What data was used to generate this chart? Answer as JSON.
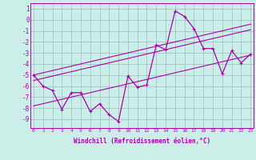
{
  "xlabel": "Windchill (Refroidissement éolien,°C)",
  "background_color": "#cceee8",
  "line_color": "#aa00aa",
  "grid_color": "#99bbbb",
  "hours": [
    0,
    1,
    2,
    3,
    4,
    5,
    6,
    7,
    8,
    9,
    10,
    11,
    12,
    13,
    14,
    15,
    16,
    17,
    18,
    19,
    20,
    21,
    22,
    23
  ],
  "windchill": [
    -5.0,
    -6.0,
    -6.4,
    -8.1,
    -6.6,
    -6.6,
    -8.3,
    -7.6,
    -8.6,
    -9.2,
    -5.1,
    -6.1,
    -5.9,
    -2.3,
    -2.7,
    0.8,
    0.3,
    -0.8,
    -2.6,
    -2.6,
    -4.9,
    -2.8,
    -3.9,
    -3.1
  ],
  "reg_upper": [
    -5.0,
    -4.8,
    -4.6,
    -4.4,
    -4.2,
    -4.0,
    -3.8,
    -3.6,
    -3.4,
    -3.2,
    -3.0,
    -2.8,
    -2.6,
    -2.4,
    -2.2,
    -2.0,
    -1.8,
    -1.6,
    -1.4,
    -1.2,
    -1.0,
    -0.8,
    -0.6,
    -0.4
  ],
  "reg_mid": [
    -5.5,
    -5.3,
    -5.1,
    -4.9,
    -4.7,
    -4.5,
    -4.3,
    -4.1,
    -3.9,
    -3.7,
    -3.5,
    -3.3,
    -3.1,
    -2.9,
    -2.7,
    -2.5,
    -2.3,
    -2.1,
    -1.9,
    -1.7,
    -1.5,
    -1.3,
    -1.1,
    -0.9
  ],
  "reg_lower": [
    -7.8,
    -7.6,
    -7.4,
    -7.2,
    -7.0,
    -6.8,
    -6.6,
    -6.4,
    -6.2,
    -6.0,
    -5.8,
    -5.6,
    -5.4,
    -5.2,
    -5.0,
    -4.8,
    -4.6,
    -4.4,
    -4.2,
    -4.0,
    -3.8,
    -3.6,
    -3.4,
    -3.2
  ],
  "ylim": [
    -9.8,
    1.5
  ],
  "yticks": [
    1,
    0,
    -1,
    -2,
    -3,
    -4,
    -5,
    -6,
    -7,
    -8,
    -9
  ],
  "xticks": [
    0,
    1,
    2,
    3,
    4,
    5,
    6,
    7,
    8,
    9,
    10,
    11,
    12,
    13,
    14,
    15,
    16,
    17,
    18,
    19,
    20,
    21,
    22,
    23
  ]
}
